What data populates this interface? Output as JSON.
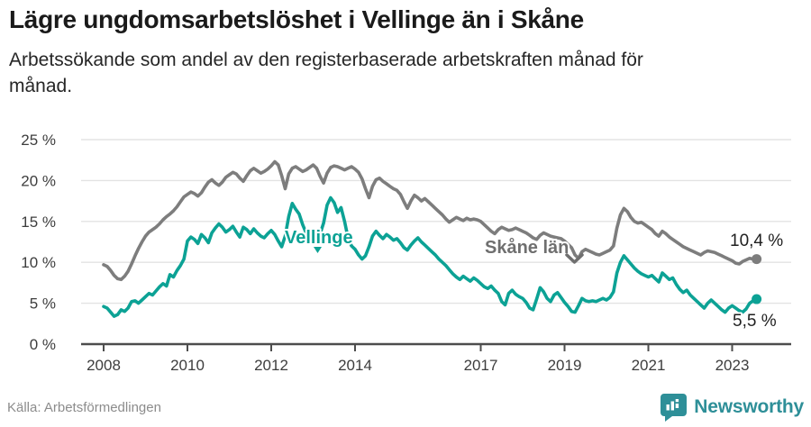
{
  "header": {
    "title": "Lägre ungdomsarbetslöshet i Vellinge än i Skåne",
    "subtitle": "Arbetssökande som andel av den registerbaserade arbetskraften månad för\nmånad."
  },
  "chart_data": {
    "type": "line",
    "title": "Lägre ungdomsarbetslöshet i Vellinge än i Skåne",
    "subtitle": "Arbetssökande som andel av den registerbaserade arbetskraften månad för månad.",
    "unit": "%",
    "frequency": "monthly",
    "x_start": "2008-01",
    "x_end": "2023-08",
    "ylim": [
      0,
      25
    ],
    "grid": "horizontal",
    "legend": "inline-labels",
    "y_ticks": [
      "0 %",
      "5 %",
      "10 %",
      "15 %",
      "20 %",
      "25 %"
    ],
    "x_ticks": [
      "2008",
      "2010",
      "2012",
      "2014",
      "2017",
      "2019",
      "2021",
      "2023"
    ],
    "series": [
      {
        "id": "skane",
        "name": "Skåne län",
        "color": "#7d7d7d",
        "end_label": "10,4 %",
        "end_value": 10.4,
        "values": [
          9.7,
          9.5,
          9.0,
          8.4,
          8.0,
          7.9,
          8.3,
          8.9,
          9.8,
          10.8,
          11.7,
          12.5,
          13.2,
          13.7,
          14.0,
          14.3,
          14.7,
          15.2,
          15.6,
          15.9,
          16.3,
          16.8,
          17.4,
          18.0,
          18.3,
          18.6,
          18.4,
          18.1,
          18.5,
          19.2,
          19.8,
          20.1,
          19.7,
          19.4,
          19.8,
          20.4,
          20.7,
          21.0,
          20.8,
          20.3,
          19.9,
          20.6,
          21.2,
          21.5,
          21.2,
          20.9,
          21.1,
          21.4,
          21.8,
          22.3,
          21.9,
          20.6,
          19.0,
          20.8,
          21.5,
          21.7,
          21.4,
          21.1,
          21.3,
          21.6,
          21.9,
          21.5,
          20.5,
          19.7,
          20.9,
          21.6,
          21.8,
          21.7,
          21.5,
          21.3,
          21.5,
          21.7,
          21.4,
          21.0,
          20.2,
          19.0,
          17.9,
          19.3,
          20.1,
          20.3,
          19.9,
          19.6,
          19.3,
          19.0,
          18.8,
          18.3,
          17.4,
          16.6,
          17.5,
          18.2,
          17.9,
          17.5,
          17.8,
          17.4,
          17.0,
          16.6,
          16.2,
          15.8,
          15.3,
          14.9,
          15.2,
          15.5,
          15.3,
          15.1,
          15.4,
          15.2,
          15.3,
          15.2,
          15.0,
          14.6,
          14.2,
          13.8,
          13.5,
          14.0,
          14.3,
          14.1,
          13.9,
          14.0,
          14.2,
          14.0,
          13.8,
          13.6,
          13.3,
          13.0,
          12.8,
          13.3,
          13.6,
          13.4,
          13.2,
          13.1,
          13.0,
          12.9,
          12.6,
          12.2,
          11.8,
          10.9,
          10.5,
          11.3,
          11.6,
          11.4,
          11.2,
          11.0,
          10.9,
          11.1,
          11.3,
          11.5,
          12.0,
          14.2,
          15.8,
          16.6,
          16.2,
          15.5,
          15.0,
          14.8,
          14.9,
          14.6,
          14.3,
          14.0,
          13.5,
          13.2,
          13.8,
          13.5,
          13.1,
          12.8,
          12.5,
          12.2,
          11.9,
          11.7,
          11.5,
          11.3,
          11.1,
          10.9,
          11.2,
          11.4,
          11.3,
          11.2,
          11.0,
          10.8,
          10.6,
          10.4,
          10.2,
          9.9,
          9.8,
          10.1,
          10.3,
          10.5,
          10.4,
          10.4
        ]
      },
      {
        "id": "vellinge",
        "name": "Vellinge",
        "color": "#0ca295",
        "end_label": "5,5 %",
        "end_value": 5.5,
        "values": [
          4.6,
          4.4,
          3.9,
          3.4,
          3.6,
          4.2,
          4.0,
          4.4,
          5.2,
          5.3,
          5.0,
          5.4,
          5.8,
          6.2,
          6.0,
          6.5,
          7.0,
          7.4,
          7.1,
          8.5,
          8.2,
          9.0,
          9.6,
          10.4,
          12.6,
          13.1,
          12.8,
          12.3,
          13.4,
          13.0,
          12.4,
          13.6,
          14.2,
          14.7,
          14.3,
          13.7,
          14.0,
          14.4,
          13.7,
          13.1,
          14.3,
          14.0,
          13.5,
          14.1,
          13.6,
          13.2,
          13.0,
          13.5,
          13.9,
          13.4,
          12.6,
          11.9,
          13.2,
          15.6,
          17.2,
          16.5,
          15.9,
          14.6,
          13.6,
          13.2,
          13.4,
          13.0,
          13.5,
          14.8,
          17.0,
          17.9,
          17.3,
          16.1,
          16.7,
          15.0,
          13.0,
          12.0,
          11.6,
          10.9,
          10.4,
          10.8,
          11.9,
          13.2,
          13.8,
          13.3,
          12.9,
          13.4,
          13.1,
          12.7,
          12.9,
          12.4,
          11.8,
          11.5,
          12.1,
          12.6,
          13.0,
          12.5,
          12.1,
          11.7,
          11.3,
          10.9,
          10.4,
          10.0,
          9.6,
          9.1,
          8.6,
          8.2,
          7.9,
          8.3,
          8.0,
          7.7,
          8.1,
          7.8,
          7.4,
          7.0,
          6.8,
          7.1,
          6.6,
          6.2,
          5.2,
          4.8,
          6.2,
          6.6,
          6.1,
          5.8,
          5.6,
          5.1,
          4.4,
          4.2,
          5.5,
          6.9,
          6.4,
          5.6,
          5.2,
          6.0,
          6.3,
          5.7,
          5.1,
          4.6,
          4.0,
          3.9,
          4.7,
          5.6,
          5.3,
          5.2,
          5.3,
          5.2,
          5.4,
          5.6,
          5.4,
          5.7,
          6.4,
          8.7,
          10.0,
          10.8,
          10.3,
          9.8,
          9.3,
          8.9,
          8.6,
          8.4,
          8.2,
          8.4,
          8.0,
          7.6,
          8.7,
          8.3,
          7.9,
          8.1,
          7.3,
          6.7,
          6.3,
          6.6,
          6.0,
          5.6,
          5.2,
          4.8,
          4.4,
          5.0,
          5.4,
          5.0,
          4.6,
          4.2,
          3.9,
          4.4,
          4.7,
          4.4,
          4.1,
          3.9,
          4.3,
          5.0,
          5.3,
          5.5
        ]
      }
    ]
  },
  "colors": {
    "teal": "#0ca295",
    "gray_line": "#7d7d7d",
    "grid": "#e3e3e3",
    "axis": "#4d4d4d",
    "title_text": "#1a1a1a",
    "source_text": "#8c8c8c",
    "brand_teal": "#2e8f98"
  },
  "footer": {
    "source": "Källa: Arbetsförmedlingen",
    "brand": "Newsworthy",
    "brand_icon": "newsworthy-speech-bubble-bar-chart"
  }
}
